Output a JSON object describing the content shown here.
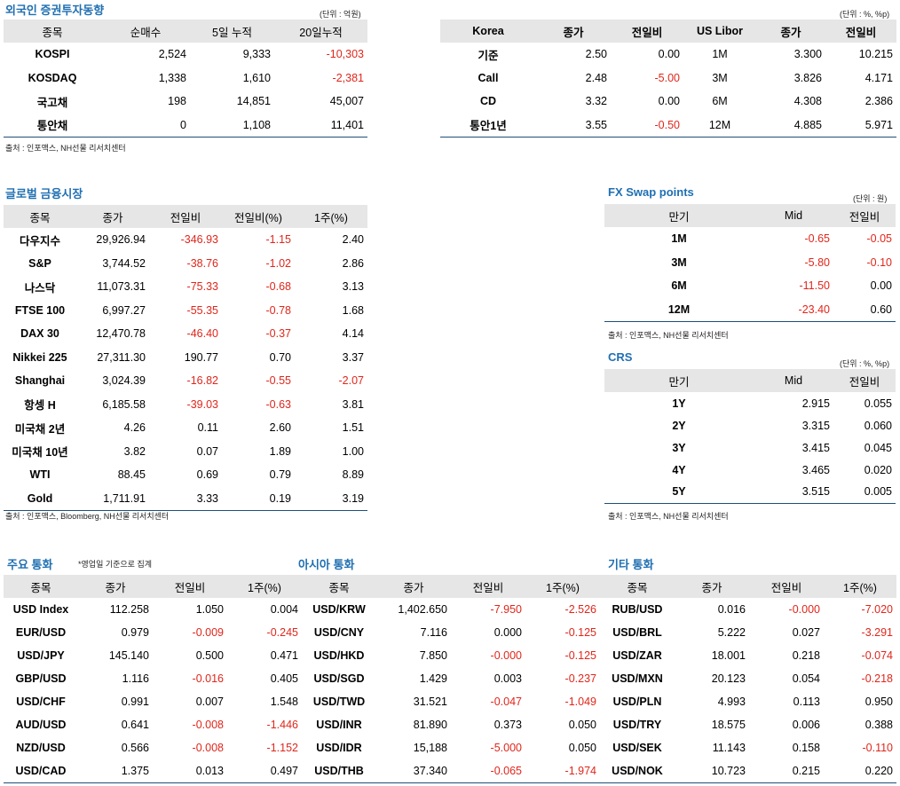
{
  "foreign": {
    "title": "외국인 증권투자동향",
    "unit": "(단위 : 억원)",
    "headers": [
      "종목",
      "순매수",
      "5일 누적",
      "20일누적"
    ],
    "rows": [
      [
        "KOSPI",
        "2,524",
        "9,333",
        "-10,303"
      ],
      [
        "KOSDAQ",
        "1,338",
        "1,610",
        "-2,381"
      ],
      [
        "국고채",
        "198",
        "14,851",
        "45,007"
      ],
      [
        "통안채",
        "0",
        "1,108",
        "11,401"
      ]
    ],
    "source": "출처 : 인포맥스, NH선물 리서치센터"
  },
  "korea_rates": {
    "unit": "(단위 : %, %p)",
    "headers": [
      "Korea",
      "종가",
      "전일비",
      "US Libor",
      "종가",
      "전일비"
    ],
    "rows": [
      [
        "기준",
        "2.50",
        "0.00",
        "1M",
        "3.300",
        "10.215"
      ],
      [
        "Call",
        "2.48",
        "-5.00",
        "3M",
        "3.826",
        "4.171"
      ],
      [
        "CD",
        "3.32",
        "0.00",
        "6M",
        "4.308",
        "2.386"
      ],
      [
        "통안1년",
        "3.55",
        "-0.50",
        "12M",
        "4.885",
        "5.971"
      ]
    ]
  },
  "global": {
    "title": "글로벌 금융시장",
    "headers": [
      "종목",
      "종가",
      "전일비",
      "전일비(%)",
      "1주(%)"
    ],
    "rows": [
      [
        "다우지수",
        "29,926.94",
        "-346.93",
        "-1.15",
        "2.40"
      ],
      [
        "S&P",
        "3,744.52",
        "-38.76",
        "-1.02",
        "2.86"
      ],
      [
        "나스닥",
        "11,073.31",
        "-75.33",
        "-0.68",
        "3.13"
      ],
      [
        "FTSE 100",
        "6,997.27",
        "-55.35",
        "-0.78",
        "1.68"
      ],
      [
        "DAX 30",
        "12,470.78",
        "-46.40",
        "-0.37",
        "4.14"
      ],
      [
        "Nikkei 225",
        "27,311.30",
        "190.77",
        "0.70",
        "3.37"
      ],
      [
        "Shanghai",
        "3,024.39",
        "-16.82",
        "-0.55",
        "-2.07"
      ],
      [
        "항셍 H",
        "6,185.58",
        "-39.03",
        "-0.63",
        "3.81"
      ],
      [
        "미국채 2년",
        "4.26",
        "0.11",
        "2.60",
        "1.51"
      ],
      [
        "미국채 10년",
        "3.82",
        "0.07",
        "1.89",
        "1.00"
      ],
      [
        "WTI",
        "88.45",
        "0.69",
        "0.79",
        "8.89"
      ],
      [
        "Gold",
        "1,711.91",
        "3.33",
        "0.19",
        "3.19"
      ]
    ],
    "source": "출처 : 인포맥스, Bloomberg, NH선물 리서치센터"
  },
  "fx_swap": {
    "title": "FX Swap points",
    "unit": "(단위 : 원)",
    "headers": [
      "만기",
      "Mid",
      "전일비"
    ],
    "rows": [
      [
        "1M",
        "-0.65",
        "-0.05"
      ],
      [
        "3M",
        "-5.80",
        "-0.10"
      ],
      [
        "6M",
        "-11.50",
        "0.00"
      ],
      [
        "12M",
        "-23.40",
        "0.60"
      ]
    ],
    "source": "출처 : 인포맥스, NH선물 리서치센터"
  },
  "crs": {
    "title": "CRS",
    "unit": "(단위 : %, %p)",
    "headers": [
      "만기",
      "Mid",
      "전일비"
    ],
    "rows": [
      [
        "1Y",
        "2.915",
        "0.055"
      ],
      [
        "2Y",
        "3.315",
        "0.060"
      ],
      [
        "3Y",
        "3.415",
        "0.045"
      ],
      [
        "4Y",
        "3.465",
        "0.020"
      ],
      [
        "5Y",
        "3.515",
        "0.005"
      ]
    ],
    "source": "출처 : 인포맥스, NH선물 리서치센터"
  },
  "currencies": {
    "major_title": "주요 통화",
    "note": "*영업일 기준으로 집계",
    "asia_title": "아시아 통화",
    "other_title": "기타 통화",
    "headers": [
      "종목",
      "종가",
      "전일비",
      "1주(%)",
      "종목",
      "종가",
      "전일비",
      "1주(%)",
      "종목",
      "종가",
      "전일비",
      "1주(%)"
    ],
    "rows": [
      [
        "USD Index",
        "112.258",
        "1.050",
        "0.004",
        "USD/KRW",
        "1,402.650",
        "-7.950",
        "-2.526",
        "RUB/USD",
        "0.016",
        "-0.000",
        "-7.020"
      ],
      [
        "EUR/USD",
        "0.979",
        "-0.009",
        "-0.245",
        "USD/CNY",
        "7.116",
        "0.000",
        "-0.125",
        "USD/BRL",
        "5.222",
        "0.027",
        "-3.291"
      ],
      [
        "USD/JPY",
        "145.140",
        "0.500",
        "0.471",
        "USD/HKD",
        "7.850",
        "-0.000",
        "-0.125",
        "USD/ZAR",
        "18.001",
        "0.218",
        "-0.074"
      ],
      [
        "GBP/USD",
        "1.116",
        "-0.016",
        "0.405",
        "USD/SGD",
        "1.429",
        "0.003",
        "-0.237",
        "USD/MXN",
        "20.123",
        "0.054",
        "-0.218"
      ],
      [
        "USD/CHF",
        "0.991",
        "0.007",
        "1.548",
        "USD/TWD",
        "31.521",
        "-0.047",
        "-1.049",
        "USD/PLN",
        "4.993",
        "0.113",
        "0.950"
      ],
      [
        "AUD/USD",
        "0.641",
        "-0.008",
        "-1.446",
        "USD/INR",
        "81.890",
        "0.373",
        "0.050",
        "USD/TRY",
        "18.575",
        "0.006",
        "0.388"
      ],
      [
        "NZD/USD",
        "0.566",
        "-0.008",
        "-1.152",
        "USD/IDR",
        "15,188",
        "-5.000",
        "0.050",
        "USD/SEK",
        "11.143",
        "0.158",
        "-0.110"
      ],
      [
        "USD/CAD",
        "1.375",
        "0.013",
        "0.497",
        "USD/THB",
        "37.340",
        "-0.065",
        "-1.974",
        "USD/NOK",
        "10.723",
        "0.215",
        "0.220"
      ]
    ]
  }
}
